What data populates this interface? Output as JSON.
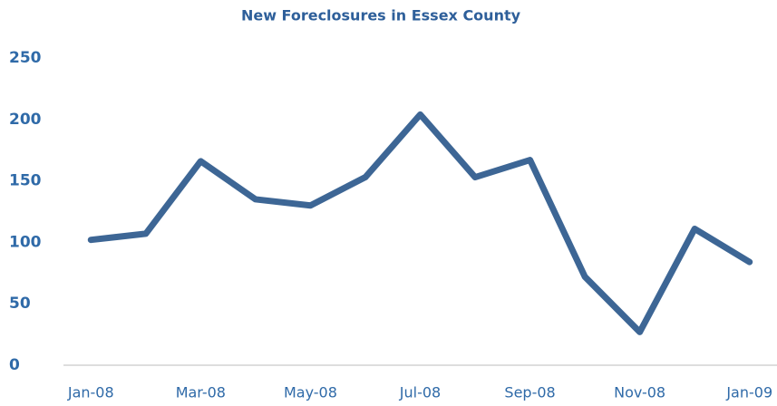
{
  "chart_data": {
    "type": "line",
    "title": "New Foreclosures in Essex County",
    "categories": [
      "Jan-08",
      null,
      "Mar-08",
      null,
      "May-08",
      null,
      "Jul-08",
      null,
      "Sep-08",
      null,
      "Nov-08",
      null,
      "Jan-09"
    ],
    "values": [
      102,
      107,
      166,
      135,
      130,
      153,
      204,
      153,
      167,
      72,
      27,
      111,
      84
    ],
    "color": "#3d6695",
    "ylim": [
      0,
      250
    ],
    "yticks": [
      0,
      50,
      100,
      150,
      200,
      250
    ],
    "grid": false
  }
}
